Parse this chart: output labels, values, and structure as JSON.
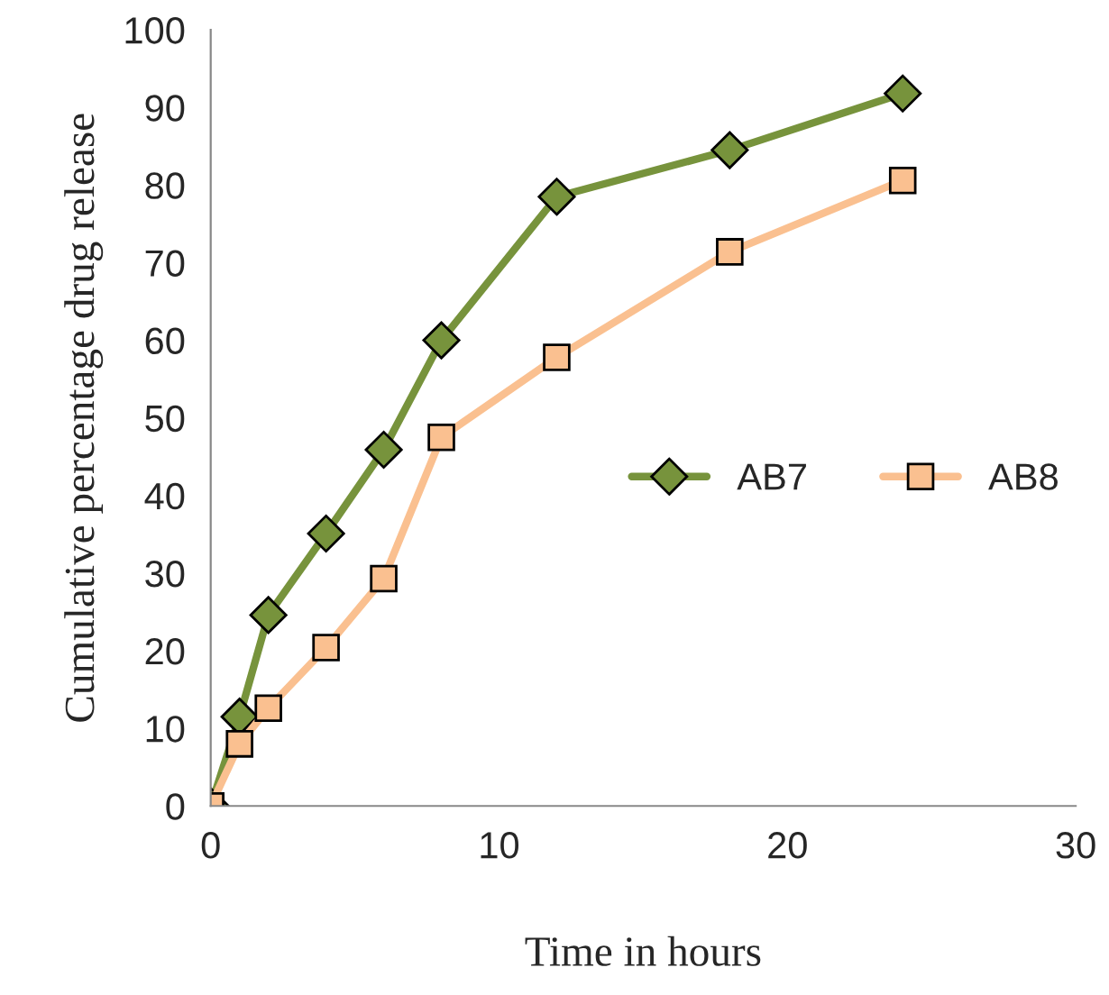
{
  "chart_data": {
    "type": "line",
    "xlabel": "Time in hours",
    "ylabel": "Cumulative percentage drug release",
    "xlim": [
      0,
      30
    ],
    "xticks": [
      0,
      10,
      20,
      30
    ],
    "ylim": [
      0,
      100
    ],
    "yticks": [
      0,
      10,
      20,
      30,
      40,
      50,
      60,
      70,
      80,
      90,
      100
    ],
    "grid": false,
    "legend": "right",
    "series": [
      {
        "name": "AB7",
        "color": "#77933c",
        "marker": "diamond",
        "x": [
          0,
          1,
          2,
          4,
          6,
          8,
          12,
          18,
          24
        ],
        "values": [
          0,
          11.5,
          24.6,
          35.1,
          45.9,
          60,
          78.5,
          84.5,
          91.8
        ]
      },
      {
        "name": "AB8",
        "color": "#fac090",
        "marker": "square",
        "x": [
          0,
          1,
          2,
          4,
          6,
          8,
          12,
          18,
          24
        ],
        "values": [
          0,
          8,
          12.6,
          20.4,
          29.3,
          47.5,
          57.8,
          71.4,
          80.6
        ]
      }
    ]
  }
}
